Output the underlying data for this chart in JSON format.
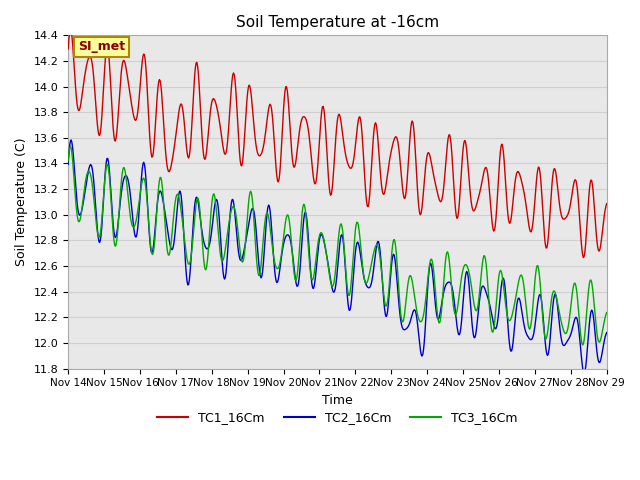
{
  "title": "Soil Temperature at -16cm",
  "xlabel": "Time",
  "ylabel": "Soil Temperature (C)",
  "ylim": [
    11.8,
    14.4
  ],
  "xlim": [
    0,
    360
  ],
  "x_tick_labels": [
    "Nov 14",
    "Nov 15",
    "Nov 16",
    "Nov 17",
    "Nov 18",
    "Nov 19",
    "Nov 20",
    "Nov 21",
    "Nov 22",
    "Nov 23",
    "Nov 24",
    "Nov 25",
    "Nov 26",
    "Nov 27",
    "Nov 28",
    "Nov 29"
  ],
  "x_tick_positions": [
    0,
    24,
    48,
    72,
    96,
    120,
    144,
    168,
    192,
    216,
    240,
    264,
    288,
    312,
    336,
    360
  ],
  "grid_color": "#d0d0d0",
  "bg_color": "#e8e8e8",
  "tc1_color": "#cc0000",
  "tc2_color": "#0000cc",
  "tc3_color": "#00aa00",
  "annotation_text": "SI_met",
  "annotation_bg": "#ffff99",
  "annotation_border": "#aa8800",
  "annotation_text_color": "#880000",
  "legend_labels": [
    "TC1_16Cm",
    "TC2_16Cm",
    "TC3_16Cm"
  ]
}
